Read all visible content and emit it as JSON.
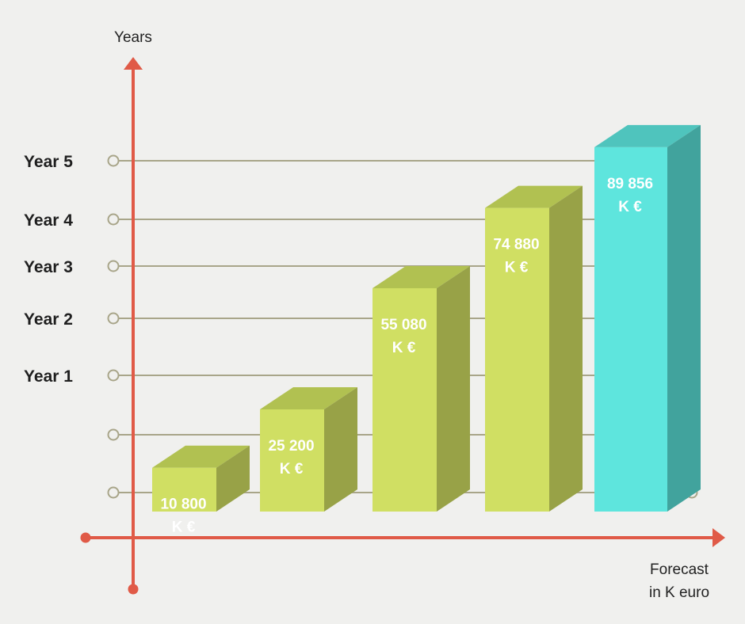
{
  "chart_data": {
    "type": "bar",
    "y_axis_title": "Years",
    "x_axis_title_line1": "Forecast",
    "x_axis_title_line2": "in K euro",
    "y_tick_labels": [
      "Year 5",
      "Year 4",
      "Year 3",
      "Year 2",
      "Year 1",
      "",
      ""
    ],
    "series": [
      {
        "values": [
          10800,
          25200,
          55080,
          74880,
          89856
        ]
      }
    ],
    "value_labels": [
      [
        "10 800",
        "K €"
      ],
      [
        "25 200",
        "K €"
      ],
      [
        "55 080",
        "K €"
      ],
      [
        "74 880",
        "K €"
      ],
      [
        "89 856",
        "K €"
      ]
    ],
    "ylim": [
      0,
      100000
    ],
    "grid": true,
    "colors": {
      "axis": "#e05a47",
      "grid": "#a8a589",
      "bar_front": "#d0df63",
      "bar_top": "#b1c151",
      "bar_side": "#98a247",
      "highlight_front": "#5ee5dd",
      "highlight_top": "#4fc4bd",
      "highlight_side": "#41a39d",
      "text": "#1f1f1f",
      "bar_text": "#ffffff"
    }
  }
}
